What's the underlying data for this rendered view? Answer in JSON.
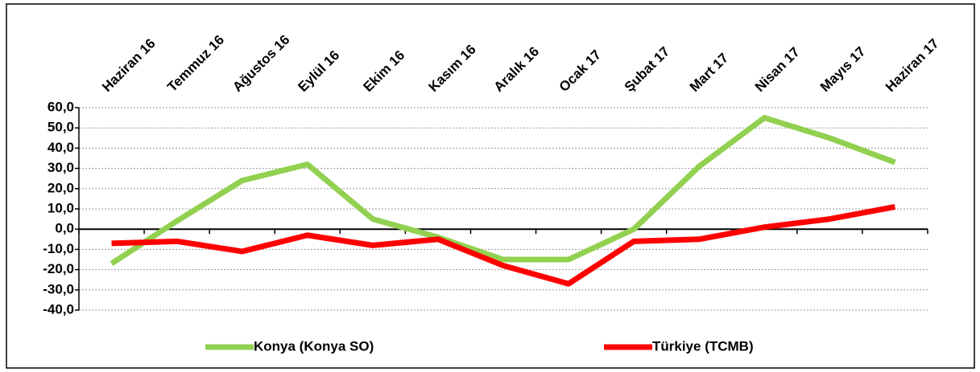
{
  "chart_data": {
    "type": "line",
    "categories": [
      "Haziran 16",
      "Temmuz 16",
      "Ağustos 16",
      "Eylül 16",
      "Ekim 16",
      "Kasım 16",
      "Aralık 16",
      "Ocak 17",
      "Şubat 17",
      "Mart 17",
      "Nisan 17",
      "Mayıs 17",
      "Haziran 17"
    ],
    "series": [
      {
        "name": "Konya (Konya SO)",
        "color": "#92d050",
        "values": [
          -17,
          4,
          24,
          32,
          5,
          -4,
          -15,
          -15,
          0,
          31,
          55,
          45,
          33
        ]
      },
      {
        "name": "Türkiye (TCMB)",
        "color": "#ff0000",
        "values": [
          -7,
          -6,
          -11,
          -3,
          -8,
          -5,
          -18,
          -27,
          -6,
          -5,
          1,
          5,
          11
        ]
      }
    ],
    "ylim": [
      -40,
      60
    ],
    "yticks": [
      {
        "value": -40,
        "label": "-40,0"
      },
      {
        "value": -30,
        "label": "-30,0"
      },
      {
        "value": -20,
        "label": "-20,0"
      },
      {
        "value": -10,
        "label": "-10,0"
      },
      {
        "value": 0,
        "label": "0,0"
      },
      {
        "value": 10,
        "label": "10,0"
      },
      {
        "value": 20,
        "label": "20,0"
      },
      {
        "value": 30,
        "label": "30,0"
      },
      {
        "value": 40,
        "label": "40,0"
      },
      {
        "value": 50,
        "label": "50,0"
      },
      {
        "value": 60,
        "label": "60,0"
      }
    ],
    "grid": true,
    "legend": "bottom"
  }
}
